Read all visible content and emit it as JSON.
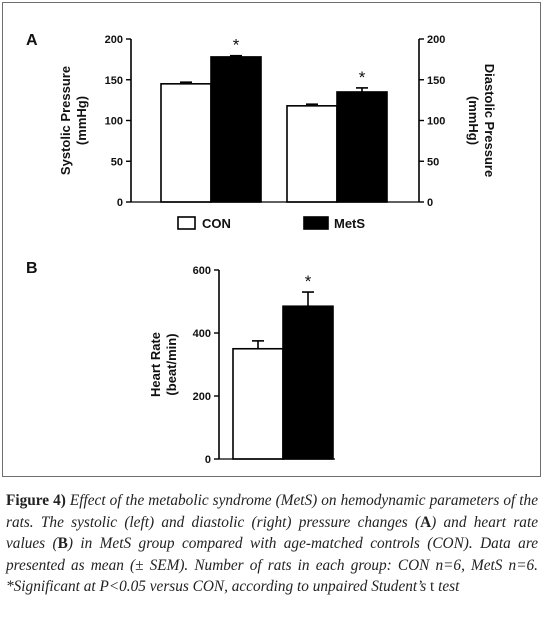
{
  "chart_data": [
    {
      "panel": "A",
      "type": "bar",
      "categories": [
        "CON",
        "MetS"
      ],
      "legend": [
        "CON",
        "MetS"
      ],
      "colors": {
        "CON": "#ffffff",
        "MetS": "#000000"
      },
      "series": [
        {
          "values": [
            145,
            178
          ],
          "errors": [
            2,
            1.5
          ],
          "significant": [
            false,
            true
          ]
        },
        {
          "values": [
            118,
            135
          ],
          "errors": [
            2,
            5
          ],
          "significant": [
            false,
            true
          ]
        }
      ],
      "ylabel": "Systolic Pressure\n(mmHg)",
      "y2label": "Diastolic Pressure\n(mmHg)",
      "ylim": [
        0,
        200
      ],
      "y2lim": [
        0,
        200
      ],
      "yticks": [
        "0",
        "50",
        "100",
        "150",
        "200"
      ],
      "y2ticks": [
        "0",
        "50",
        "100",
        "150",
        "200"
      ],
      "legend_position": "bottom"
    },
    {
      "panel": "B",
      "type": "bar",
      "categories": [
        "CON",
        "MetS"
      ],
      "series": [
        {
          "values": [
            350,
            485
          ],
          "errors": [
            25,
            45
          ],
          "significant": [
            false,
            true
          ]
        }
      ],
      "ylabel": "Heart Rate\n(beat/min)",
      "ylim": [
        0,
        600
      ],
      "yticks": [
        "0",
        "200",
        "400",
        "600"
      ]
    }
  ],
  "sig_marker": "*",
  "caption": {
    "label": "Figure 4)",
    "s1": " Effect of the metabolic syndrome (MetS) on hemodynamic parameters of the rats. The systolic (left) and diastolic (right) pressure changes (",
    "a": "A",
    "s2": ") and heart rate values (",
    "b": "B",
    "s3": ") in MetS group compared with age-matched controls (CON). Data are presented as mean (± SEM). Number of rats in each group: CON n=6, MetS n=6. *Significant at P<0.05 versus CON, according to unpaired Student’s ",
    "t": "t",
    "s4": " test"
  }
}
